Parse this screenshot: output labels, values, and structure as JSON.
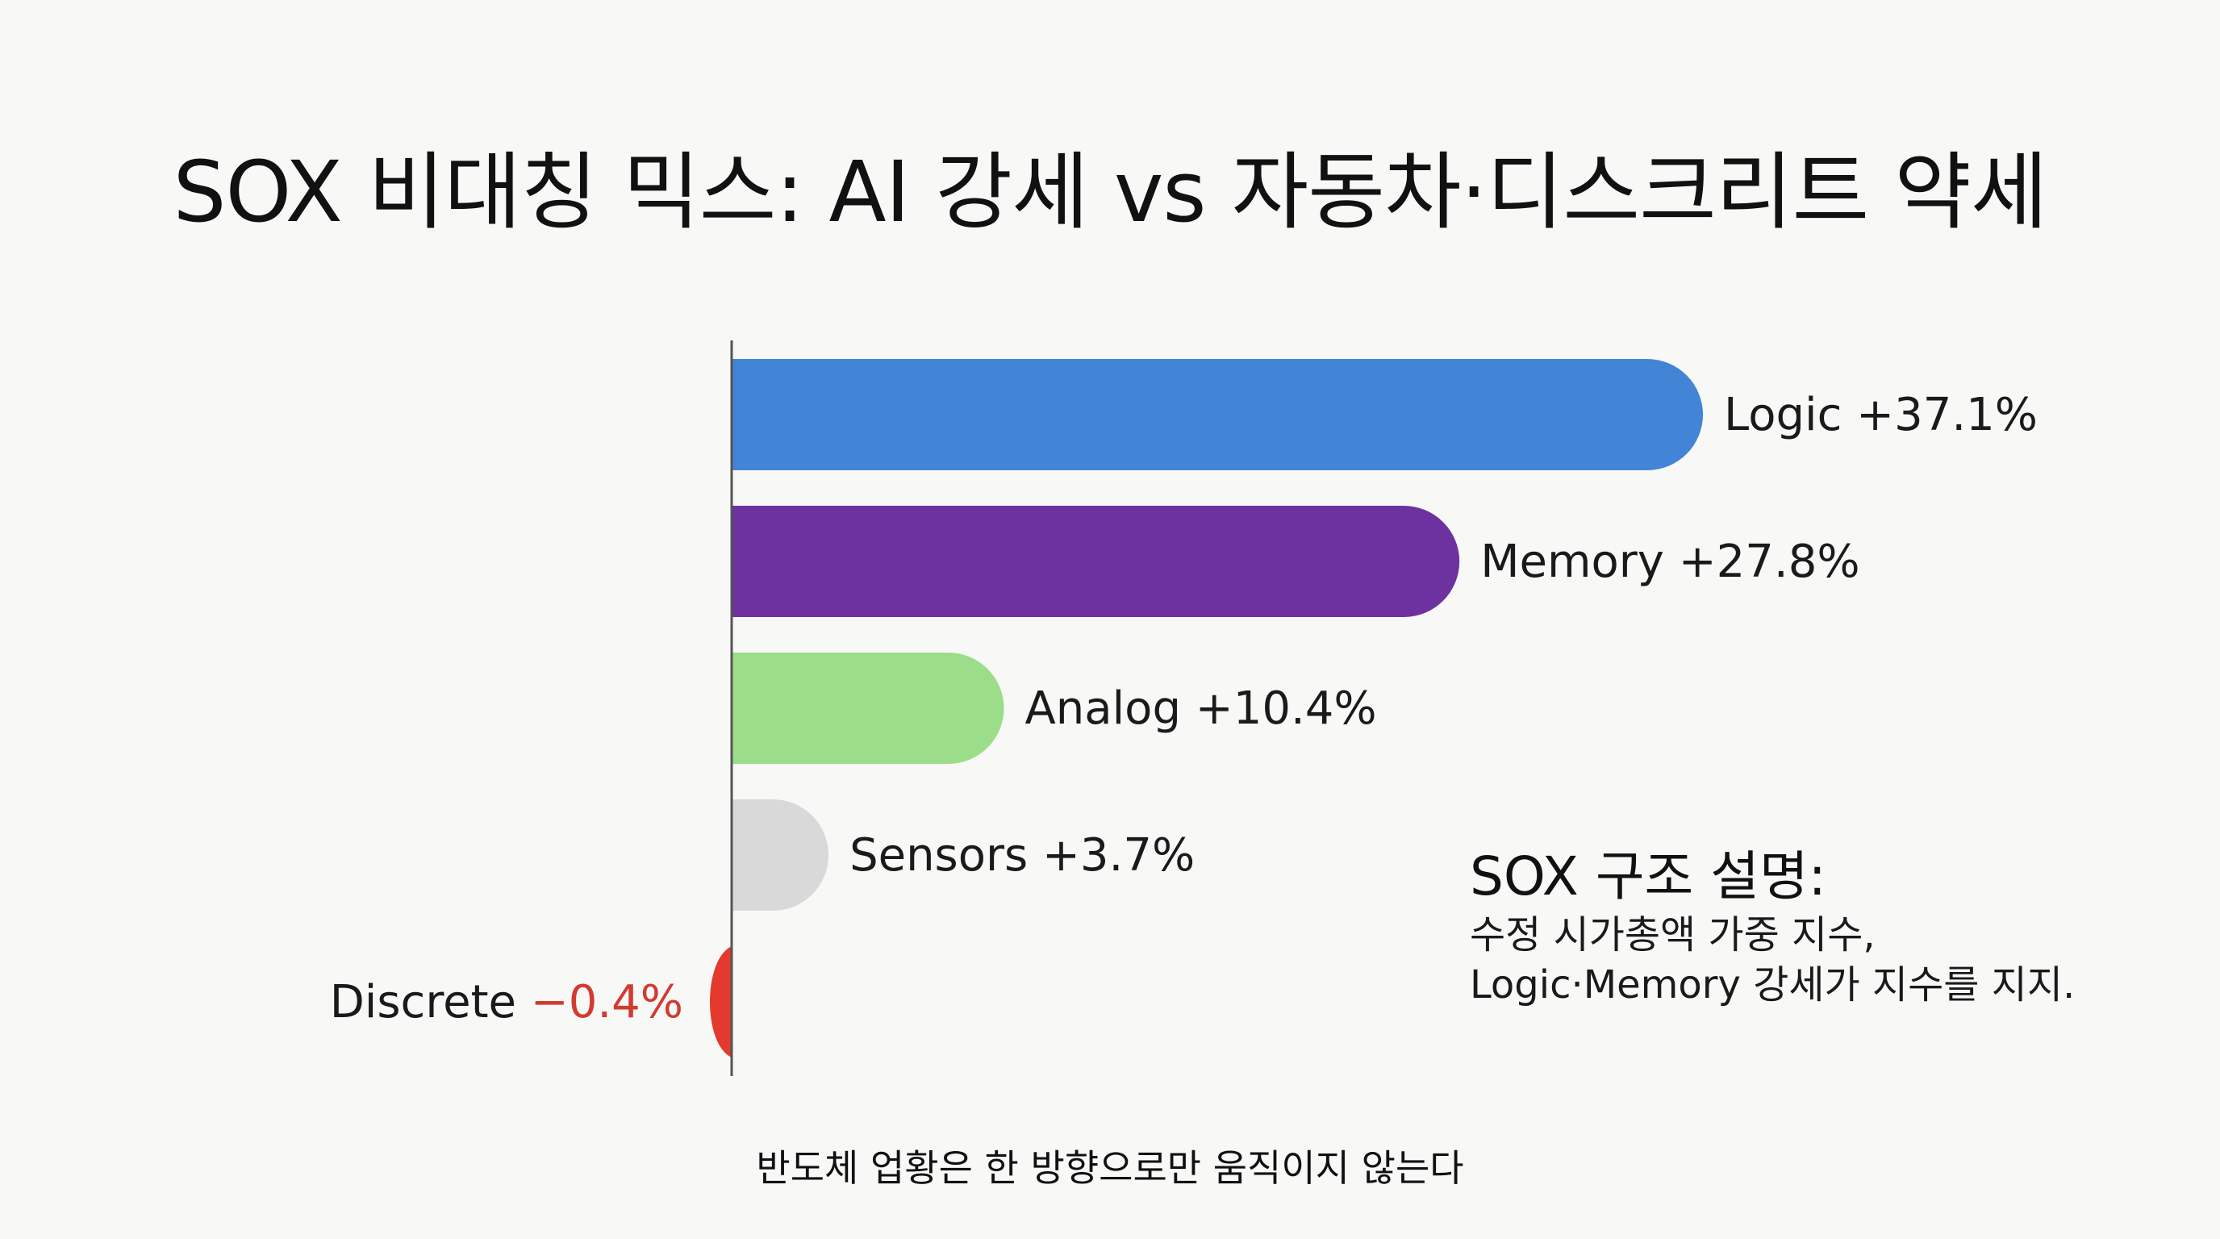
{
  "chart_data": {
    "type": "bar",
    "orientation": "horizontal",
    "title": "SOX 비대칭 믹스: AI 강세 vs 자동차·디스크리트 약세",
    "unit": "%",
    "categories": [
      "Logic",
      "Memory",
      "Analog",
      "Sensors",
      "Discrete"
    ],
    "values": [
      37.1,
      27.8,
      10.4,
      3.7,
      -0.4
    ],
    "value_labels": [
      "+37.1%",
      "+27.8%",
      "+10.4%",
      "+3.7%",
      "−0.4%"
    ],
    "colors": [
      "#4285d6",
      "#6e31a0",
      "#9cdd8a",
      "#d9d9d9",
      "#e33a2d"
    ],
    "grid": false,
    "legend": "none"
  },
  "note": {
    "title": "SOX 구조 설명:",
    "lines": [
      "수정 시가총액 가중 지수,",
      "Logic·Memory 강세가 지수를 지지."
    ]
  },
  "footer": "반도체 업황은 한 방향으로만 움직이지 않는다"
}
